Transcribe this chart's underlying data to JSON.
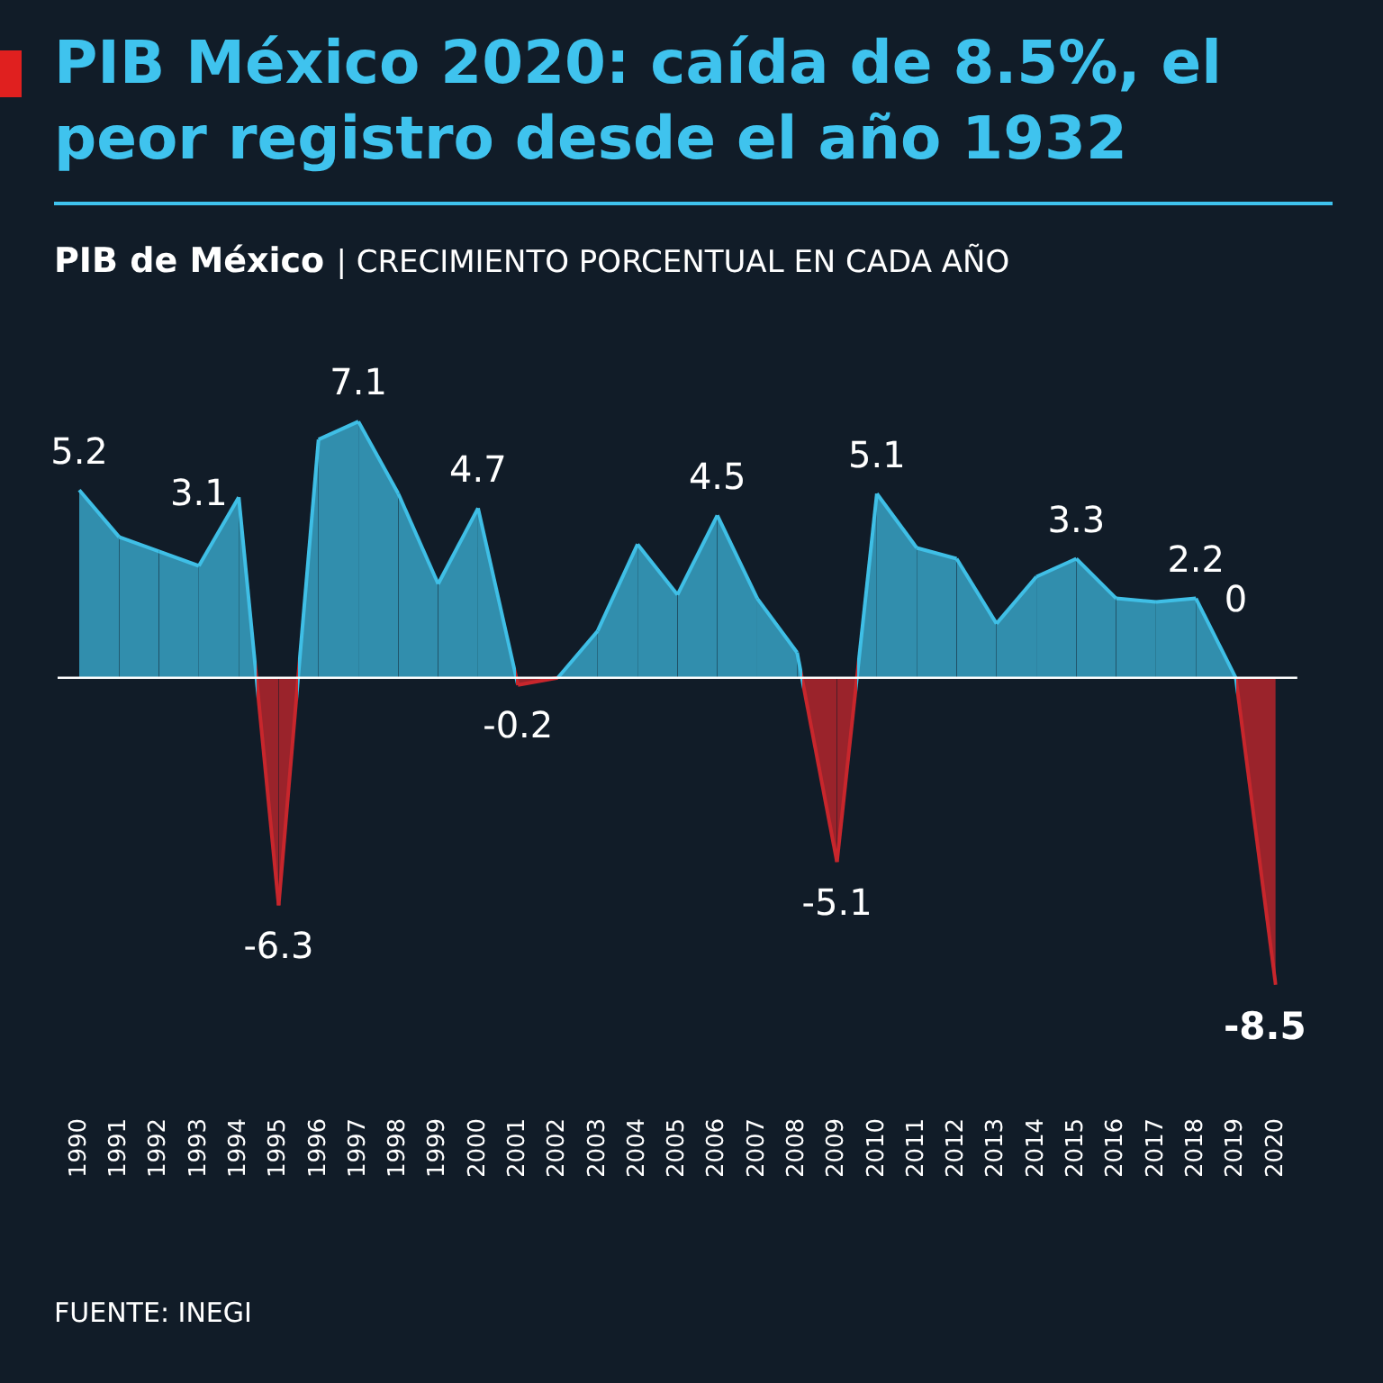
{
  "chart_data": {
    "type": "area",
    "title": "PIB México 2020: caída de 8.5%, el peor registro desde el año 1932",
    "subtitle": "PIB de México | CRECIMIENTO PORCENTUAL EN CADA AÑO",
    "categories": [
      "1990",
      "1991",
      "1992",
      "1993",
      "1994",
      "1995",
      "1996",
      "1997",
      "1998",
      "1999",
      "2000",
      "2001",
      "2002",
      "2003",
      "2004",
      "2005",
      "2006",
      "2007",
      "2008",
      "2009",
      "2010",
      "2011",
      "2012",
      "2013",
      "2014",
      "2015",
      "2016",
      "2017",
      "2018",
      "2019",
      "2020"
    ],
    "series": [
      {
        "color": "#3fbfe6",
        "colors": [
          "#3fbfe6",
          "#3fbfe6",
          "#3fbfe6",
          "#3fbfe6",
          "#3fbfe6",
          "#c8262c",
          "#3fbfe6",
          "#3fbfe6",
          "#3fbfe6",
          "#3fbfe6",
          "#3fbfe6",
          "#c8262c",
          "#3fbfe6",
          "#3fbfe6",
          "#3fbfe6",
          "#3fbfe6",
          "#3fbfe6",
          "#3fbfe6",
          "#3fbfe6",
          "#c8262c",
          "#3fbfe6",
          "#3fbfe6",
          "#3fbfe6",
          "#3fbfe6",
          "#3fbfe6",
          "#3fbfe6",
          "#3fbfe6",
          "#3fbfe6",
          "#3fbfe6",
          "#3fbfe6",
          "#c8262c"
        ],
        "values": [
          5.2,
          3.9,
          3.5,
          3.1,
          5.0,
          -6.3,
          6.6,
          7.1,
          5.1,
          2.6,
          4.7,
          -0.2,
          0.0,
          1.3,
          3.7,
          2.3,
          4.5,
          2.2,
          0.7,
          -5.1,
          5.1,
          3.6,
          3.3,
          1.5,
          2.8,
          3.3,
          2.2,
          2.1,
          2.2,
          0,
          -8.5
        ],
        "value_labels": [
          "5.2",
          null,
          null,
          "3.1",
          null,
          "-6.3",
          null,
          "7.1",
          null,
          null,
          "4.7",
          "-0.2",
          null,
          null,
          null,
          null,
          "4.5",
          null,
          null,
          "-5.1",
          "5.1",
          null,
          null,
          null,
          null,
          "3.3",
          null,
          null,
          "2.2",
          "0",
          "-8.5"
        ]
      }
    ],
    "tick_labels": "x",
    "legend": false,
    "annotations": [
      "FUENTE: INEGI"
    ]
  }
}
